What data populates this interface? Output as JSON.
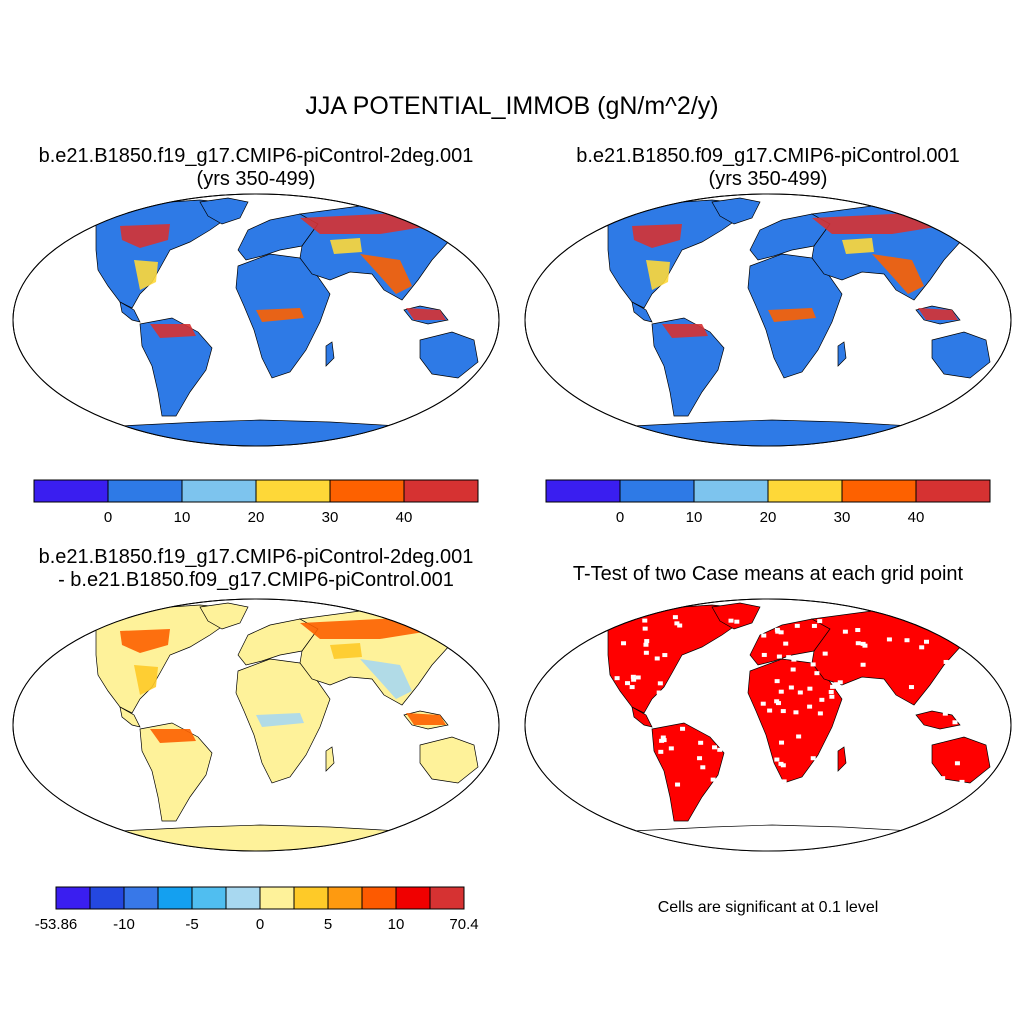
{
  "figure": {
    "title": "JJA POTENTIAL_IMMOB (gN/m^2/y)"
  },
  "panels": [
    {
      "id": "case1",
      "subtitle_line1": "b.e21.B1850.f19_g17.CMIP6-piControl-2deg.001",
      "subtitle_line2": "(yrs 350-499)",
      "land_fill": "#2E7AE6",
      "hot_fill": "#D63232",
      "mid_fill": "#FD6100",
      "warm_fill": "#FED838",
      "antarctica_fill": "#2E7AE6"
    },
    {
      "id": "case2",
      "subtitle_line1": "b.e21.B1850.f09_g17.CMIP6-piControl.001",
      "subtitle_line2": "(yrs 350-499)",
      "land_fill": "#2E7AE6",
      "hot_fill": "#D63232",
      "mid_fill": "#FD6100",
      "warm_fill": "#FED838",
      "antarctica_fill": "#2E7AE6"
    },
    {
      "id": "difference",
      "subtitle_line1": "b.e21.B1850.f19_g17.CMIP6-piControl-2deg.001",
      "subtitle_line2": "- b.e21.B1850.f09_g17.CMIP6-piControl.001",
      "land_fill": "#FEF29A",
      "hot_fill": "#FD6100",
      "mid_fill": "#A8D8F0",
      "warm_fill": "#FECA28",
      "antarctica_fill": "#FEF29A"
    },
    {
      "id": "ttest",
      "subtitle_line1": "T-Test of two Case means at each grid point",
      "note": "Cells are significant at 0.1 level",
      "land_fill": "#FF0000",
      "antarctica_fill": "#FFFFFF"
    }
  ],
  "colorbars": [
    {
      "id": "cb1",
      "colors": [
        "#3A1EF0",
        "#2E7AE6",
        "#7DC4EE",
        "#FED838",
        "#FD6100",
        "#D63232"
      ],
      "labels": [
        "0",
        "10",
        "20",
        "30",
        "40"
      ],
      "label_at_boundary": [
        1,
        2,
        3,
        4,
        5
      ]
    },
    {
      "id": "cb2",
      "colors": [
        "#3A1EF0",
        "#2E7AE6",
        "#7DC4EE",
        "#FED838",
        "#FD6100",
        "#D63232"
      ],
      "labels": [
        "0",
        "10",
        "20",
        "30",
        "40"
      ],
      "label_at_boundary": [
        1,
        2,
        3,
        4,
        5
      ]
    },
    {
      "id": "cb3",
      "colors": [
        "#3A1EF0",
        "#2448E0",
        "#3878E8",
        "#14A0F0",
        "#50BEF0",
        "#A8D8F0",
        "#FEF29A",
        "#FECA28",
        "#FE9A10",
        "#FD5A00",
        "#F00000",
        "#D63232"
      ],
      "labels": [
        "-53.86",
        "-10",
        "-5",
        "0",
        "5",
        "10",
        "70.4"
      ],
      "label_at_boundary": [
        0,
        2,
        4,
        6,
        8,
        10,
        12
      ]
    }
  ]
}
